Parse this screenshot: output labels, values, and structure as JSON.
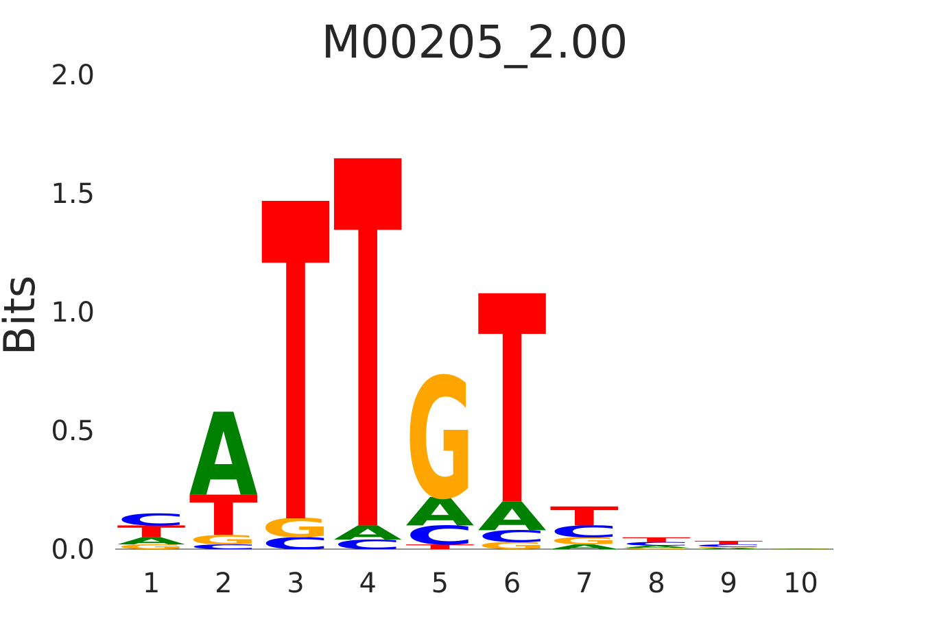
{
  "chart_data": {
    "type": "sequence-logo",
    "title": "M00205_2.00",
    "ylabel": "Bits",
    "xlabel": "",
    "ylim": [
      0,
      2.0
    ],
    "yticks": [
      "0.0",
      "0.5",
      "1.0",
      "1.5",
      "2.0"
    ],
    "positions": [
      "1",
      "2",
      "3",
      "4",
      "5",
      "6",
      "7",
      "8",
      "9",
      "10"
    ],
    "colors": {
      "A": "#008000",
      "C": "#0000ff",
      "G": "#ffa500",
      "T": "#ff0000"
    },
    "columns": [
      {
        "position": "1",
        "letters": [
          {
            "base": "G",
            "bits": 0.02
          },
          {
            "base": "A",
            "bits": 0.03
          },
          {
            "base": "T",
            "bits": 0.05
          },
          {
            "base": "C",
            "bits": 0.05
          }
        ]
      },
      {
        "position": "2",
        "letters": [
          {
            "base": "C",
            "bits": 0.02
          },
          {
            "base": "G",
            "bits": 0.04
          },
          {
            "base": "T",
            "bits": 0.17
          },
          {
            "base": "A",
            "bits": 0.35
          }
        ]
      },
      {
        "position": "3",
        "letters": [
          {
            "base": "C",
            "bits": 0.05
          },
          {
            "base": "G",
            "bits": 0.08
          },
          {
            "base": "T",
            "bits": 1.34
          }
        ]
      },
      {
        "position": "4",
        "letters": [
          {
            "base": "C",
            "bits": 0.04
          },
          {
            "base": "A",
            "bits": 0.06
          },
          {
            "base": "T",
            "bits": 1.55
          }
        ]
      },
      {
        "position": "5",
        "letters": [
          {
            "base": "T",
            "bits": 0.02
          },
          {
            "base": "C",
            "bits": 0.08
          },
          {
            "base": "A",
            "bits": 0.12
          },
          {
            "base": "G",
            "bits": 0.51
          }
        ]
      },
      {
        "position": "6",
        "letters": [
          {
            "base": "G",
            "bits": 0.03
          },
          {
            "base": "C",
            "bits": 0.05
          },
          {
            "base": "A",
            "bits": 0.12
          },
          {
            "base": "T",
            "bits": 0.88
          }
        ]
      },
      {
        "position": "7",
        "letters": [
          {
            "base": "A",
            "bits": 0.02
          },
          {
            "base": "G",
            "bits": 0.03
          },
          {
            "base": "C",
            "bits": 0.05
          },
          {
            "base": "T",
            "bits": 0.08
          }
        ]
      },
      {
        "position": "8",
        "letters": [
          {
            "base": "G",
            "bits": 0.005
          },
          {
            "base": "A",
            "bits": 0.01
          },
          {
            "base": "C",
            "bits": 0.015
          },
          {
            "base": "T",
            "bits": 0.02
          }
        ]
      },
      {
        "position": "9",
        "letters": [
          {
            "base": "A",
            "bits": 0.005
          },
          {
            "base": "G",
            "bits": 0.005
          },
          {
            "base": "C",
            "bits": 0.01
          },
          {
            "base": "T",
            "bits": 0.015
          }
        ]
      },
      {
        "position": "10",
        "letters": [
          {
            "base": "A",
            "bits": 0.002
          },
          {
            "base": "G",
            "bits": 0.002
          }
        ]
      }
    ]
  }
}
